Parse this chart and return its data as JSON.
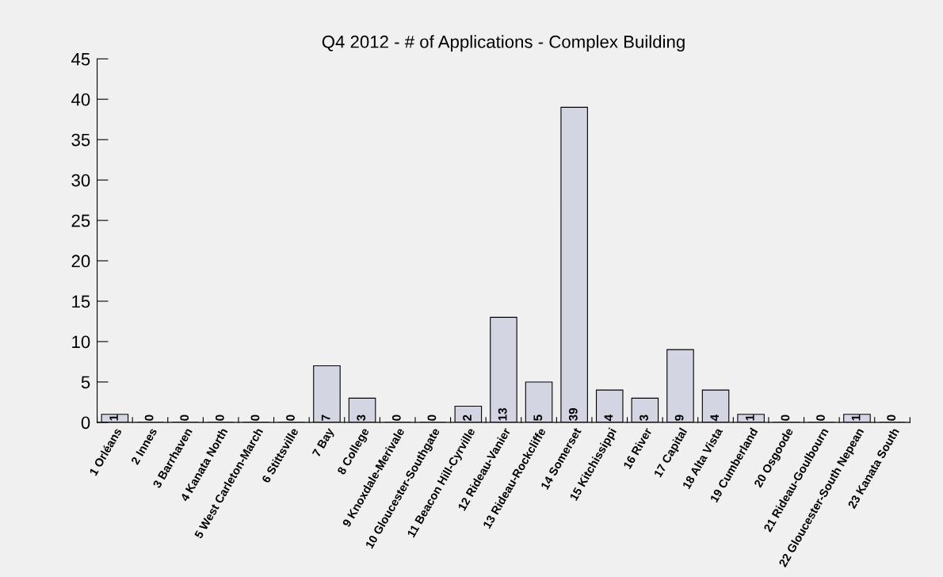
{
  "chart_data": {
    "type": "bar",
    "title": "Q4 2012 - # of Applications - Complex Building",
    "categories": [
      "1 Orléans",
      "2 Innes",
      "3 Barrhaven",
      "4 Kanata North",
      "5 West Carleton-March",
      "6 Stittsville",
      "7 Bay",
      "8 College",
      "9 Knoxdale-Merivale",
      "10 Gloucester-Southgate",
      "11 Beacon Hill-Cyrville",
      "12 Rideau-Vanier",
      "13 Rideau-Rockcliffe",
      "14 Somerset",
      "15 Kitchissippi",
      "16 River",
      "17 Capital",
      "18 Alta Vista",
      "19 Cumberland",
      "20 Osgoode",
      "21 Rideau-Goulbourn",
      "22 Gloucester-South Nepean",
      "23 Kanata South"
    ],
    "values": [
      1,
      0,
      0,
      0,
      0,
      0,
      7,
      3,
      0,
      0,
      2,
      13,
      5,
      39,
      4,
      3,
      9,
      4,
      1,
      0,
      0,
      1,
      0
    ],
    "color": "#d3d6e2",
    "ylim": [
      0,
      45
    ],
    "yticks": [
      0,
      5,
      10,
      15,
      20,
      25,
      30,
      35,
      40,
      45
    ],
    "grid": false,
    "data_labels": true
  }
}
